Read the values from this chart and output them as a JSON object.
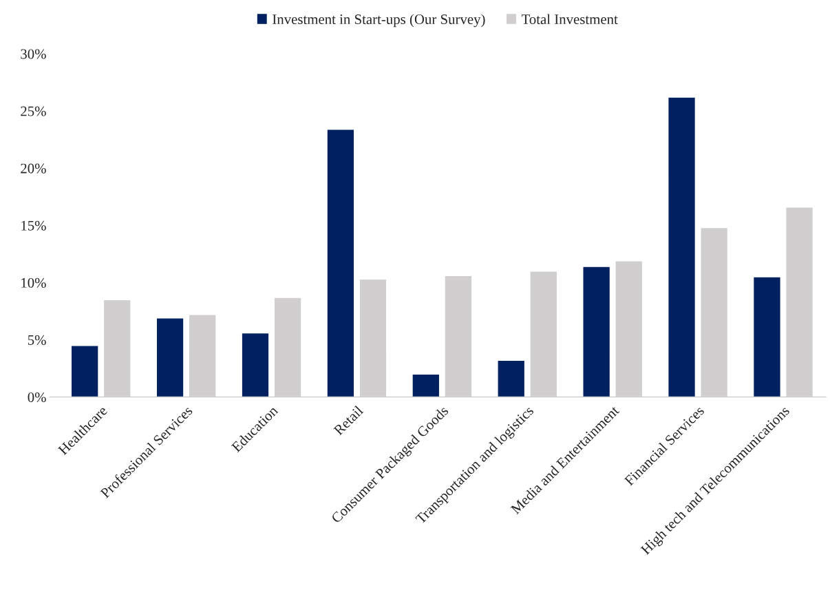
{
  "chart_data": {
    "type": "bar",
    "categories": [
      "Healthcare",
      "Professional Services",
      "Education",
      "Retail",
      "Consumer Packaged Goods",
      "Transportation and logistics",
      "Media and Entertainment",
      "Financial Services",
      "High tech and Telecommunications"
    ],
    "series": [
      {
        "name": "Investment in Start-ups (Our Survey)",
        "color": "#002060",
        "values": [
          4.5,
          6.9,
          5.6,
          23.4,
          2.0,
          3.2,
          11.4,
          26.2,
          10.5
        ]
      },
      {
        "name": "Total Investment",
        "color": "#d0cece",
        "values": [
          8.5,
          7.2,
          8.7,
          10.3,
          10.6,
          11.0,
          11.9,
          14.8,
          16.6
        ]
      }
    ],
    "ylim": [
      0,
      30
    ],
    "yticks": [
      {
        "value": 0,
        "label": "0%"
      },
      {
        "value": 5,
        "label": "5%"
      },
      {
        "value": 10,
        "label": "10%"
      },
      {
        "value": 15,
        "label": "15%"
      },
      {
        "value": 20,
        "label": "20%"
      },
      {
        "value": 25,
        "label": "25%"
      },
      {
        "value": 30,
        "label": "30%"
      }
    ],
    "legend": "top",
    "grid": false
  }
}
